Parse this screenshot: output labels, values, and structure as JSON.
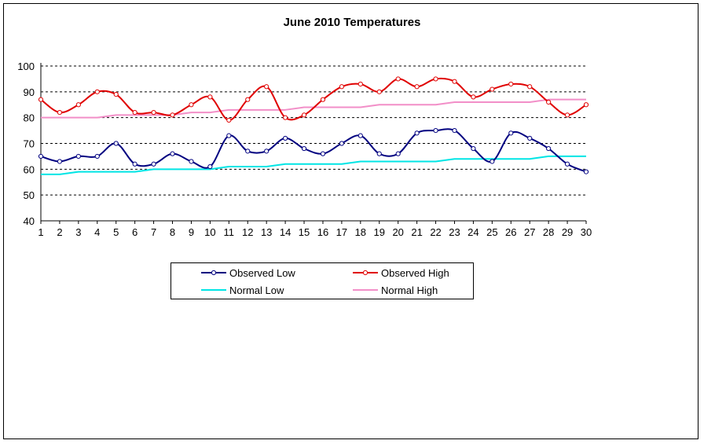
{
  "chart_data": {
    "type": "line",
    "title": "June 2010 Temperatures",
    "xlabel": "",
    "ylabel": "",
    "x": [
      1,
      2,
      3,
      4,
      5,
      6,
      7,
      8,
      9,
      10,
      11,
      12,
      13,
      14,
      15,
      16,
      17,
      18,
      19,
      20,
      21,
      22,
      23,
      24,
      25,
      26,
      27,
      28,
      29,
      30
    ],
    "ylim": [
      40,
      100
    ],
    "yticks": [
      40,
      50,
      60,
      70,
      80,
      90,
      100
    ],
    "grid": true,
    "legend_position": "bottom",
    "series": [
      {
        "name": "Observed Low",
        "color": "#000080",
        "markers": true,
        "values": [
          65,
          63,
          65,
          65,
          70,
          62,
          62,
          66,
          63,
          61,
          73,
          67,
          67,
          72,
          68,
          66,
          70,
          73,
          66,
          66,
          74,
          75,
          75,
          68,
          63,
          74,
          72,
          68,
          62,
          59
        ]
      },
      {
        "name": "Observed High",
        "color": "#e00000",
        "markers": true,
        "values": [
          87,
          82,
          85,
          90,
          89,
          82,
          82,
          81,
          85,
          88,
          79,
          87,
          92,
          80,
          81,
          87,
          92,
          93,
          90,
          95,
          92,
          95,
          94,
          88,
          91,
          93,
          92,
          86,
          81,
          85
        ]
      },
      {
        "name": "Normal Low",
        "color": "#00e5e5",
        "markers": false,
        "values": [
          58,
          58,
          59,
          59,
          59,
          59,
          60,
          60,
          60,
          60,
          61,
          61,
          61,
          62,
          62,
          62,
          62,
          63,
          63,
          63,
          63,
          63,
          64,
          64,
          64,
          64,
          64,
          65,
          65,
          65
        ]
      },
      {
        "name": "Normal High",
        "color": "#f28fc8",
        "markers": false,
        "values": [
          80,
          80,
          80,
          80,
          81,
          81,
          81,
          81,
          82,
          82,
          83,
          83,
          83,
          83,
          84,
          84,
          84,
          84,
          85,
          85,
          85,
          85,
          86,
          86,
          86,
          86,
          86,
          87,
          87,
          87
        ]
      }
    ]
  }
}
